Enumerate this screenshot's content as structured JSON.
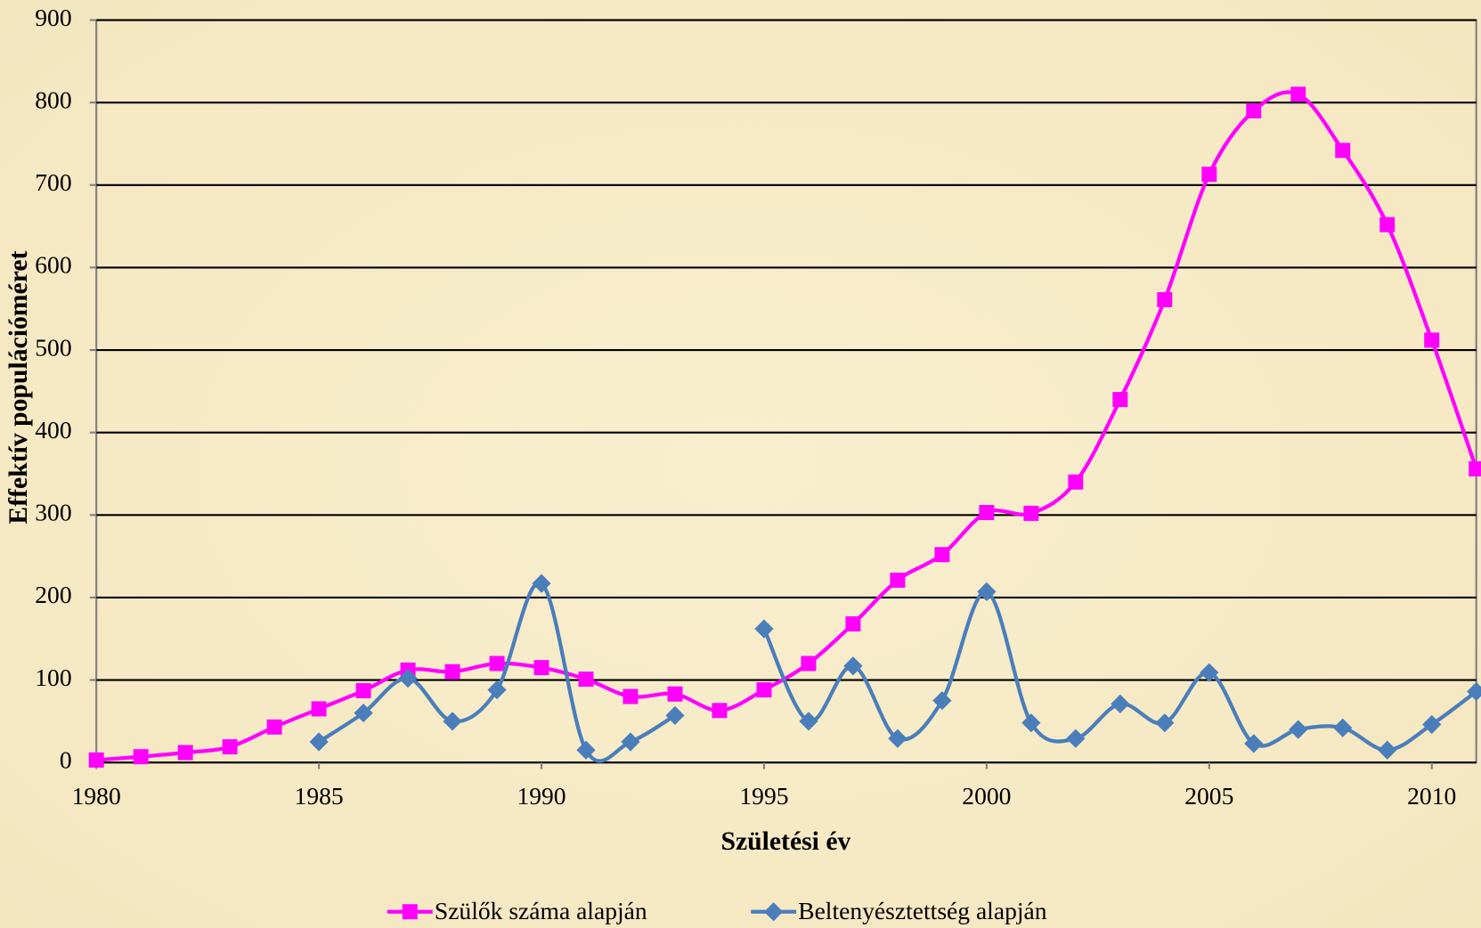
{
  "chart_data": {
    "type": "line",
    "xlabel": "Születési év",
    "ylabel": "Effektív populációméret",
    "x": [
      1980,
      1981,
      1982,
      1983,
      1984,
      1985,
      1986,
      1987,
      1988,
      1989,
      1990,
      1991,
      1992,
      1993,
      1994,
      1995,
      1996,
      1997,
      1998,
      1999,
      2000,
      2001,
      2002,
      2003,
      2004,
      2005,
      2006,
      2007,
      2008,
      2009,
      2010,
      2011
    ],
    "series": [
      {
        "name": "Szülők száma alapján",
        "color": "#ff00ff",
        "marker": "square",
        "values": [
          3,
          7,
          12,
          19,
          43,
          65,
          87,
          112,
          110,
          120,
          115,
          101,
          80,
          83,
          63,
          88,
          120,
          168,
          221,
          252,
          303,
          302,
          340,
          440,
          561,
          713,
          790,
          810,
          742,
          652,
          512,
          356
        ]
      },
      {
        "name": "Beltenyésztettség alapján",
        "color": "#4a7ebb",
        "marker": "diamond",
        "values": [
          null,
          null,
          null,
          null,
          null,
          25,
          60,
          102,
          50,
          88,
          217,
          15,
          25,
          57,
          null,
          162,
          50,
          117,
          29,
          75,
          207,
          48,
          29,
          71,
          48,
          109,
          23,
          40,
          42,
          15,
          46,
          86
        ]
      }
    ],
    "xlim": [
      1980,
      2011
    ],
    "xticks": [
      1980,
      1985,
      1990,
      1995,
      2000,
      2005,
      2010
    ],
    "ylim": [
      0,
      900
    ],
    "yticks": [
      0,
      100,
      200,
      300,
      400,
      500,
      600,
      700,
      800,
      900
    ],
    "grid": true,
    "smooth": true,
    "legend": "bottom"
  }
}
